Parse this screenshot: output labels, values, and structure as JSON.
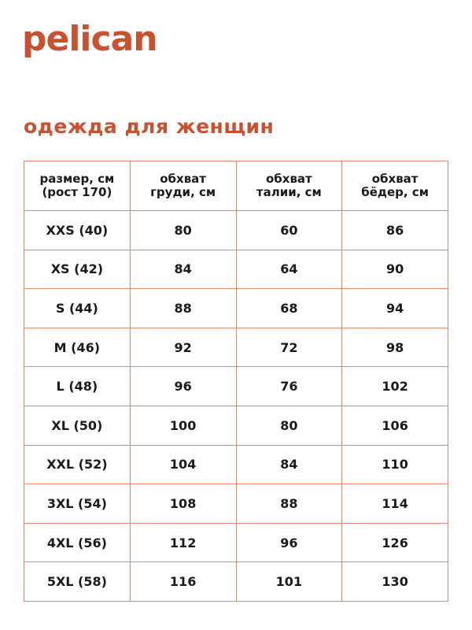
{
  "colors": {
    "brand": "#c9512f",
    "border": "#e2876c"
  },
  "logo": {
    "text": "pelican"
  },
  "page_title": "одежда для женщин",
  "table": {
    "headers": [
      [
        "размер, см",
        "(рост 170)"
      ],
      [
        "обхват",
        "груди, см"
      ],
      [
        "обхват",
        "талии, см"
      ],
      [
        "обхват",
        "бёдер, см"
      ]
    ],
    "rows": [
      [
        "XXS (40)",
        "80",
        "60",
        "86"
      ],
      [
        "XS (42)",
        "84",
        "64",
        "90"
      ],
      [
        "S (44)",
        "88",
        "68",
        "94"
      ],
      [
        "M (46)",
        "92",
        "72",
        "98"
      ],
      [
        "L (48)",
        "96",
        "76",
        "102"
      ],
      [
        "XL (50)",
        "100",
        "80",
        "106"
      ],
      [
        "XXL (52)",
        "104",
        "84",
        "110"
      ],
      [
        "3XL (54)",
        "108",
        "88",
        "114"
      ],
      [
        "4XL (56)",
        "112",
        "96",
        "126"
      ],
      [
        "5XL (58)",
        "116",
        "101",
        "130"
      ]
    ]
  }
}
